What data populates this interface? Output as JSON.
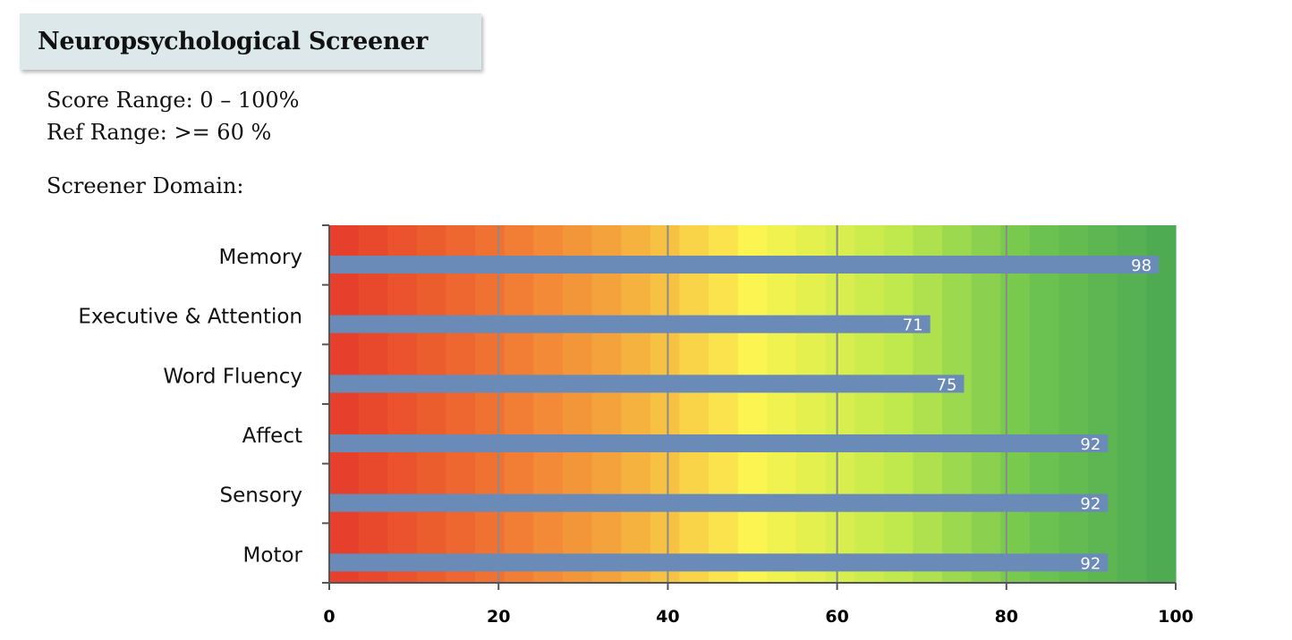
{
  "header": {
    "title": "Neuropsychological Screener"
  },
  "info": {
    "score_range": "Score Range: 0 – 100%",
    "ref_range": "Ref Range: >= 60 %",
    "domain_label": "Screener Domain:"
  },
  "chart_data": {
    "type": "bar",
    "orientation": "horizontal",
    "categories": [
      "Memory",
      "Executive & Attention",
      "Word Fluency",
      "Affect",
      "Sensory",
      "Motor"
    ],
    "values": [
      98,
      71,
      75,
      92,
      92,
      92
    ],
    "data_labels": [
      "98",
      "71",
      "75",
      "92",
      "92",
      "92"
    ],
    "xlim": [
      0,
      100
    ],
    "x_ticks": [
      0,
      20,
      40,
      60,
      80,
      100
    ],
    "x_tick_labels": [
      "0",
      "20",
      "40",
      "60",
      "80",
      "100"
    ],
    "grid": "vertical",
    "bar_color": "#6a8ab8",
    "background_gradient": [
      "#e53a2a",
      "#ef6a30",
      "#f4a43c",
      "#fcf450",
      "#c2ea4c",
      "#6ec450",
      "#4aa852"
    ]
  }
}
